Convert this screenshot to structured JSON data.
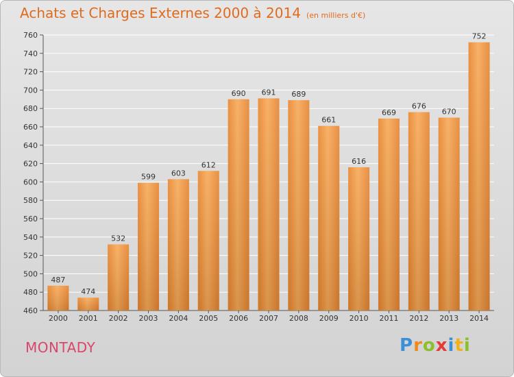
{
  "header": {
    "title": "Achats et Charges Externes 2000 à 2014",
    "unit": "(en milliers d'€)"
  },
  "footer": {
    "town": "MONTADY",
    "logo_text": "Proxiti"
  },
  "colors": {
    "title": "#e06b1e",
    "town": "#d9466a",
    "bar_light": "#f7a957",
    "bar_dark": "#e07a22"
  },
  "chart_data": {
    "type": "bar",
    "categories": [
      "2000",
      "2001",
      "2002",
      "2003",
      "2004",
      "2005",
      "2006",
      "2007",
      "2008",
      "2009",
      "2010",
      "2011",
      "2012",
      "2013",
      "2014"
    ],
    "values": [
      487,
      474,
      532,
      599,
      603,
      612,
      690,
      691,
      689,
      661,
      616,
      669,
      676,
      670,
      752
    ],
    "ylim": [
      460,
      760
    ],
    "yticks": [
      460,
      480,
      500,
      520,
      540,
      560,
      580,
      600,
      620,
      640,
      660,
      680,
      700,
      720,
      740,
      760
    ],
    "grid": true
  }
}
